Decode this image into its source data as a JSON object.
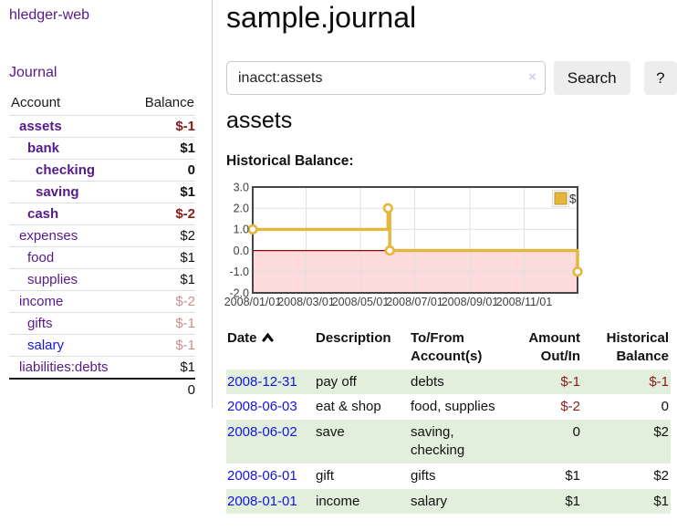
{
  "sidebar": {
    "app_title": "hledger-web",
    "nav": {
      "journal_label": "Journal"
    },
    "accounts_table": {
      "headers": {
        "account": "Account",
        "balance": "Balance"
      },
      "rows": [
        {
          "name": "assets",
          "balance": "$-1",
          "indent": 1,
          "bold": true,
          "balance_style": "negative"
        },
        {
          "name": "bank",
          "balance": "$1",
          "indent": 2,
          "bold": true,
          "balance_style": "normal"
        },
        {
          "name": "checking",
          "balance": "0",
          "indent": 3,
          "bold": true,
          "balance_style": "normal"
        },
        {
          "name": "saving",
          "balance": "$1",
          "indent": 3,
          "bold": true,
          "balance_style": "normal"
        },
        {
          "name": "cash",
          "balance": "$-2",
          "indent": 2,
          "bold": true,
          "balance_style": "negative"
        },
        {
          "name": "expenses",
          "balance": "$2",
          "indent": 1,
          "bold": false,
          "balance_style": "normal"
        },
        {
          "name": "food",
          "balance": "$1",
          "indent": 2,
          "bold": false,
          "balance_style": "normal"
        },
        {
          "name": "supplies",
          "balance": "$1",
          "indent": 2,
          "bold": false,
          "balance_style": "normal"
        },
        {
          "name": "income",
          "balance": "$-2",
          "indent": 1,
          "bold": false,
          "balance_style": "negative-faded"
        },
        {
          "name": "gifts",
          "balance": "$-1",
          "indent": 2,
          "bold": false,
          "balance_style": "negative-faded"
        },
        {
          "name": "salary",
          "balance": "$-1",
          "indent": 2,
          "bold": false,
          "balance_style": "negative-faded",
          "link_style": "unvisited"
        },
        {
          "name": "liabilities:debts",
          "balance": "$1",
          "indent": 1,
          "bold": false,
          "balance_style": "normal"
        }
      ],
      "total": "0"
    }
  },
  "main": {
    "page_title": "sample.journal",
    "search": {
      "value": "inacct:assets",
      "clear_icon": "×",
      "button_label": "Search",
      "help_label": "?"
    },
    "account_heading": "assets",
    "chart_label": "Historical Balance:"
  },
  "chart_data": {
    "type": "line",
    "subtype": "step",
    "title": "Historical Balance:",
    "series": [
      {
        "name": "$",
        "color": "#e6b53c",
        "points": [
          [
            "2008-01-01",
            1
          ],
          [
            "2008-06-01",
            2
          ],
          [
            "2008-06-03",
            0
          ],
          [
            "2008-12-31",
            -1
          ]
        ]
      }
    ],
    "x_ticks": [
      "2008/01/01",
      "2008/03/01",
      "2008/05/01",
      "2008/07/01",
      "2008/09/01",
      "2008/11/01"
    ],
    "y_ticks": [
      "3.0",
      "2.0",
      "1.0",
      "0.0",
      "-1.0",
      "-2.0"
    ],
    "ylim": [
      -2,
      3
    ],
    "xlim": [
      "2008-01-01",
      "2008-12-31"
    ],
    "grid": true,
    "legend_position": "top-right",
    "negative_region": {
      "from": -2,
      "to": 0,
      "color": "#fbdbdb"
    },
    "zero_line_color": "#8b0000",
    "marker_fill": "#ffffff",
    "tick_color": "#3f3f3f"
  },
  "register_table": {
    "headers": {
      "date": "Date",
      "description": "Description",
      "tofrom": "To/From Account(s)",
      "amount": "Amount Out/In",
      "balance": "Historical Balance"
    },
    "rows": [
      {
        "date": "2008-12-31",
        "description": "pay off",
        "accounts": "debts",
        "amount": "$-1",
        "balance": "$-1",
        "amount_style": "negative",
        "balance_style": "negative",
        "shaded": true
      },
      {
        "date": "2008-06-03",
        "description": "eat & shop",
        "accounts": "food, supplies",
        "amount": "$-2",
        "balance": "0",
        "amount_style": "negative",
        "balance_style": "normal",
        "shaded": false
      },
      {
        "date": "2008-06-02",
        "description": "save",
        "accounts": "saving, checking",
        "amount": "0",
        "balance": "$2",
        "amount_style": "normal",
        "balance_style": "normal",
        "shaded": true
      },
      {
        "date": "2008-06-01",
        "description": "gift",
        "accounts": "gifts",
        "amount": "$1",
        "balance": "$2",
        "amount_style": "normal",
        "balance_style": "normal",
        "shaded": false
      },
      {
        "date": "2008-01-01",
        "description": "income",
        "accounts": "salary",
        "amount": "$1",
        "balance": "$1",
        "amount_style": "normal",
        "balance_style": "normal",
        "shaded": true
      }
    ]
  }
}
